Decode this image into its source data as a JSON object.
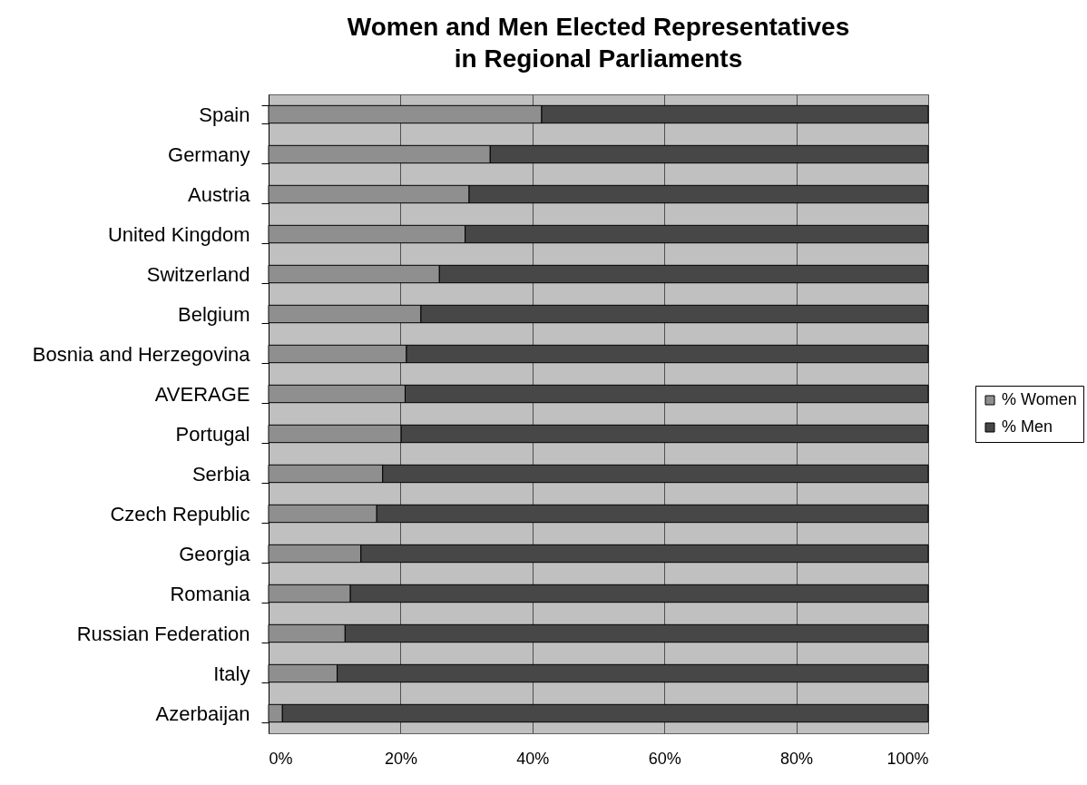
{
  "chart_data": {
    "type": "bar",
    "orientation": "horizontal",
    "stacked": true,
    "title": "Women and Men Elected Representatives in Regional Parliaments",
    "categories": [
      "Spain",
      "Germany",
      "Austria",
      "United Kingdom",
      "Switzerland",
      "Belgium",
      "Bosnia and Herzegovina",
      "AVERAGE",
      "Portugal",
      "Serbia",
      "Czech Republic",
      "Georgia",
      "Romania",
      "Russian Federation",
      "Italy",
      "Azerbaijan"
    ],
    "series": [
      {
        "name": "% Women",
        "color": "#8f8f8f",
        "values": [
          41.4,
          33.6,
          30.4,
          29.8,
          25.9,
          23.1,
          20.9,
          20.7,
          20.1,
          17.3,
          16.4,
          14.0,
          12.4,
          11.6,
          10.4,
          2.1
        ]
      },
      {
        "name": "% Men",
        "color": "#474747",
        "values": [
          58.6,
          66.4,
          69.6,
          70.2,
          74.1,
          76.9,
          79.1,
          79.3,
          79.9,
          82.7,
          83.6,
          86.0,
          87.6,
          88.4,
          89.6,
          97.9
        ]
      }
    ],
    "xlim": [
      0,
      100
    ],
    "xticks": [
      {
        "value": 0,
        "label": "0%"
      },
      {
        "value": 20,
        "label": "20%"
      },
      {
        "value": 40,
        "label": "40%"
      },
      {
        "value": 60,
        "label": "60%"
      },
      {
        "value": 80,
        "label": "80%"
      },
      {
        "value": 100,
        "label": "100%"
      }
    ],
    "grid": "x",
    "legend": "right"
  }
}
